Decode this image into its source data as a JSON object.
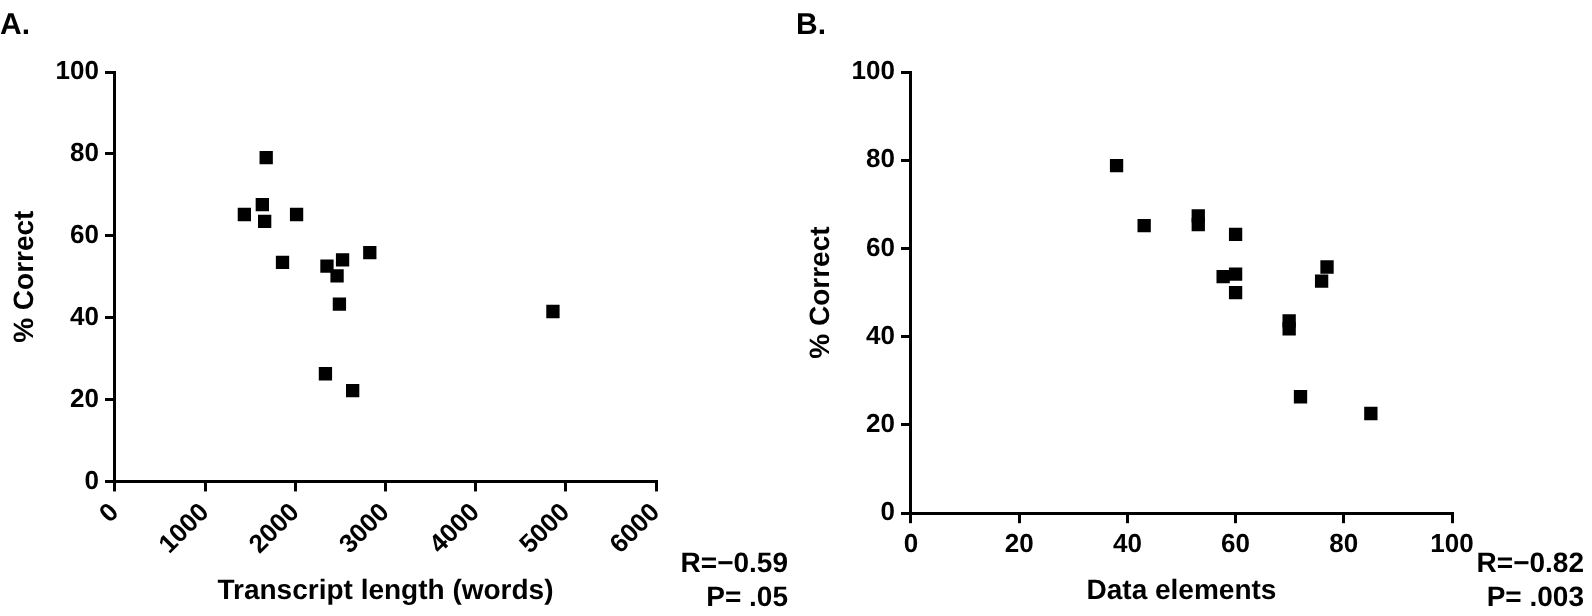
{
  "chart_data": [
    {
      "type": "scatter",
      "title": "A.",
      "xlabel": "Transcript length (words)",
      "ylabel": "% Correct",
      "x": [
        1435,
        1634,
        1677,
        1660,
        2014,
        1858,
        2351,
        2463,
        2524,
        2489,
        2826,
        2334,
        2636,
        4857
      ],
      "series": [
        {
          "color": "#000000",
          "values": [
            65.2,
            67.6,
            79.1,
            63.5,
            65.2,
            53.5,
            52.6,
            50.2,
            54.1,
            43.3,
            55.9,
            26.3,
            22.2,
            41.5
          ]
        }
      ],
      "xlim": [
        0,
        6000
      ],
      "xticks": [
        0,
        1000,
        2000,
        3000,
        4000,
        5000,
        6000
      ],
      "ylim": [
        0,
        100
      ],
      "yticks": [
        0,
        20,
        40,
        60,
        80,
        100
      ],
      "marker": "square",
      "grid": false,
      "legend": false,
      "annotations": [
        "R=−0.59",
        "P= .05"
      ]
    },
    {
      "type": "scatter",
      "title": "B.",
      "xlabel": "Data elements",
      "ylabel": "% Correct",
      "x": [
        38.0,
        43.1,
        53.1,
        53.1,
        60.0,
        57.7,
        60.0,
        60.0,
        69.9,
        69.9,
        72.0,
        75.9,
        76.9,
        85.0
      ],
      "series": [
        {
          "color": "#000000",
          "values": [
            78.8,
            65.2,
            67.4,
            65.4,
            63.2,
            53.6,
            54.2,
            50.0,
            43.6,
            41.8,
            26.4,
            52.6,
            55.8,
            22.6
          ]
        }
      ],
      "xlim": [
        0,
        100
      ],
      "xticks": [
        0,
        20,
        40,
        60,
        80,
        100
      ],
      "ylim": [
        0,
        100
      ],
      "yticks": [
        0,
        20,
        40,
        60,
        80,
        100
      ],
      "marker": "square",
      "grid": false,
      "legend": false,
      "annotations": [
        "R=−0.82",
        "P= .003"
      ]
    }
  ]
}
